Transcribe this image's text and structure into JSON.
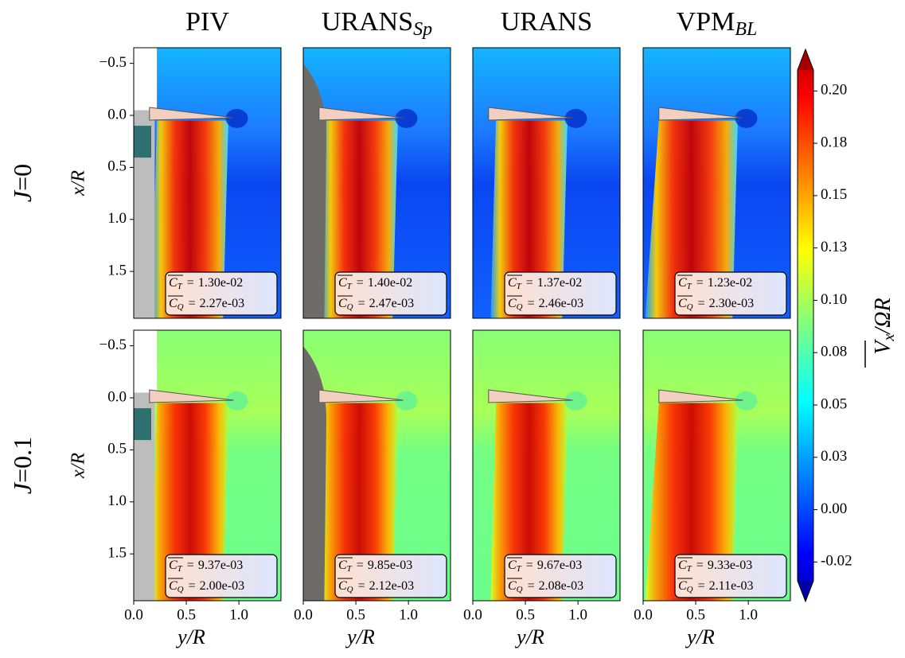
{
  "chart_data": {
    "type": "contour",
    "columns": [
      {
        "name": "PIV"
      },
      {
        "name": "URANS",
        "sub": "Sp"
      },
      {
        "name": "URANS"
      },
      {
        "name": "VPM",
        "sub": "BL"
      }
    ],
    "rows": [
      {
        "name": "J",
        "relation": "=",
        "value": 0,
        "value_label": "0"
      },
      {
        "name": "J",
        "relation": "=",
        "value": 0.1,
        "value_label": "0.1"
      }
    ],
    "xlabel": "y/R",
    "ylabel": "x/R",
    "xlim": [
      0,
      1.4
    ],
    "xticks": [
      {
        "value": 0,
        "label": "0.0"
      },
      {
        "value": 0.5,
        "label": "0.5"
      },
      {
        "value": 1,
        "label": "1.0"
      }
    ],
    "ylim": [
      -0.65,
      1.95
    ],
    "y_inverted": true,
    "yticks": [
      {
        "value": -0.5,
        "label": "−0.5"
      },
      {
        "value": 0,
        "label": "0.0"
      },
      {
        "value": 0.5,
        "label": "0.5"
      },
      {
        "value": 1,
        "label": "1.0"
      },
      {
        "value": 1.5,
        "label": "1.5"
      }
    ],
    "thrust": {
      "symbol": "C",
      "sub": "T",
      "relation": "=",
      "values": [
        0.013,
        0.014,
        0.0137,
        0.0123,
        0.00937,
        0.00985,
        0.00967,
        0.00933
      ],
      "value_labels": [
        "1.30e-02",
        "1.40e-02",
        "1.37e-02",
        "1.23e-02",
        "9.37e-03",
        "9.85e-03",
        "9.67e-03",
        "9.33e-03"
      ]
    },
    "torque": {
      "symbol": "C",
      "sub": "Q",
      "relation": "=",
      "values": [
        0.00227,
        0.00247,
        0.00246,
        0.0023,
        0.002,
        0.00212,
        0.00208,
        0.00211
      ],
      "value_labels": [
        "2.27e-03",
        "2.47e-03",
        "2.46e-03",
        "2.30e-03",
        "2.00e-03",
        "2.12e-03",
        "2.08e-03",
        "2.11e-03"
      ]
    },
    "colorbar": {
      "colormap": "jet",
      "clim": [
        -0.034,
        0.21
      ],
      "label": {
        "name": "V",
        "sub": "x",
        "rest": "/ΩR"
      },
      "ticks": [
        {
          "value": -0.025,
          "label": "-0.02"
        },
        {
          "value": 0,
          "label": "0.00"
        },
        {
          "value": 0.025,
          "label": "0.03"
        },
        {
          "value": 0.05,
          "label": "0.05"
        },
        {
          "value": 0.075,
          "label": "0.08"
        },
        {
          "value": 0.1,
          "label": "0.10"
        },
        {
          "value": 0.125,
          "label": "0.13"
        },
        {
          "value": 0.15,
          "label": "0.15"
        },
        {
          "value": 0.175,
          "label": "0.18"
        },
        {
          "value": 0.2,
          "label": "0.20"
        }
      ]
    }
  }
}
